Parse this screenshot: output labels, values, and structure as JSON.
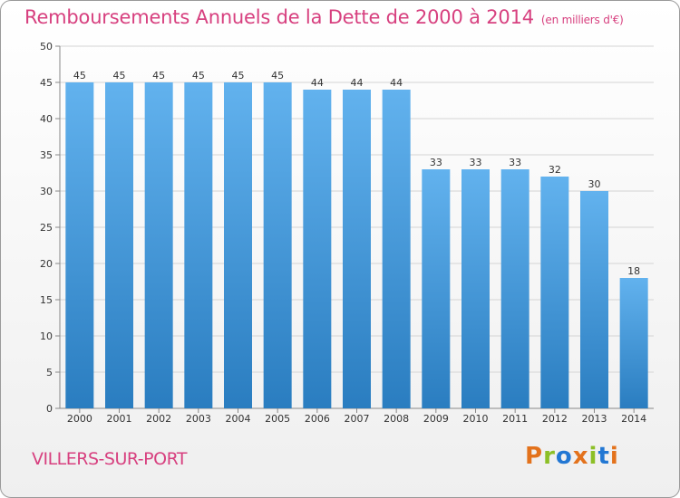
{
  "header": {
    "title": "Remboursements Annuels de la Dette de 2000 à 2014",
    "unit": "(en milliers d'€)"
  },
  "commune": "VILLERS-SUR-PORT",
  "brand": {
    "text": "Proxiti",
    "colors": [
      "#e3721c",
      "#8cbf26",
      "#2277d3",
      "#e3721c",
      "#8cbf26",
      "#2277d3",
      "#e3721c"
    ]
  },
  "colors": {
    "bar_top": "#62b2ee",
    "bar_bottom": "#2a7dc0",
    "title": "#d7407f"
  },
  "chart_data": {
    "type": "bar",
    "title": "Remboursements Annuels de la Dette de 2000 à 2014",
    "ylabel": "en milliers d'€",
    "xlabel": "",
    "categories": [
      "2000",
      "2001",
      "2002",
      "2003",
      "2004",
      "2005",
      "2006",
      "2007",
      "2008",
      "2009",
      "2010",
      "2011",
      "2012",
      "2013",
      "2014"
    ],
    "values": [
      45,
      45,
      45,
      45,
      45,
      45,
      44,
      44,
      44,
      33,
      33,
      33,
      32,
      30,
      18
    ],
    "ylim": [
      0,
      50
    ],
    "yticks": [
      0,
      5,
      10,
      15,
      20,
      25,
      30,
      35,
      40,
      45,
      50
    ],
    "grid": true
  }
}
